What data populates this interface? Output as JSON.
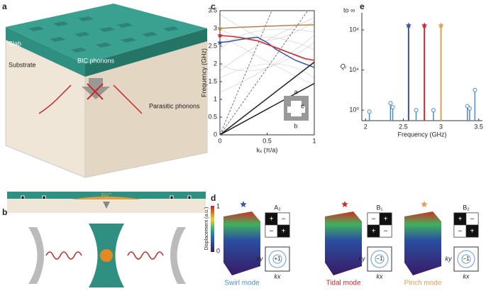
{
  "panels": {
    "a": {
      "letter": "a",
      "slab": "Slab",
      "substrate": "Substrate",
      "bic_phonons": "BIC phonons",
      "parasitic": "Parasitic phonons",
      "bic": "BIC"
    },
    "b": {
      "letter": "b"
    },
    "c": {
      "letter": "c",
      "inset": [
        "a",
        "c",
        "b"
      ]
    },
    "e": {
      "letter": "e"
    },
    "d": {
      "letter": "d",
      "colorbar": {
        "max": "1",
        "min": "0",
        "label": "Displacement (a.u.)"
      },
      "modes": [
        {
          "name": "Swirl mode",
          "symmetry": "A₂",
          "signs": [
            "+",
            "−",
            "−",
            "+"
          ],
          "field": "+1",
          "ky": "ky",
          "kx": "kx"
        },
        {
          "name": "Tidal mode",
          "symmetry": "B₁",
          "signs": [
            "−",
            "+",
            "+",
            "−"
          ],
          "field": "−1",
          "ky": "ky",
          "kx": "kx"
        },
        {
          "name": "Pinch mode",
          "symmetry": "B₂",
          "signs": [
            "+",
            "−",
            "−",
            "+"
          ],
          "field": "−1",
          "ky": "ky",
          "kx": "kx"
        }
      ]
    }
  },
  "chart_data": [
    {
      "type": "line",
      "ylabel": "Frequency (GHz)",
      "xlabel": "kₓ (π/a)",
      "xlim": [
        0,
        1
      ],
      "ylim": [
        0,
        3.5
      ],
      "xticks": [
        0,
        0.5,
        1
      ],
      "yticks": [
        0,
        0.5,
        1,
        1.5,
        2,
        2.5,
        3,
        3.5
      ],
      "series": [
        {
          "color": "#3a55a4",
          "star": true,
          "x": [
            0,
            0.1,
            0.2,
            0.3,
            0.4,
            0.5,
            0.6,
            0.7,
            0.8,
            0.9,
            1
          ],
          "values": [
            2.6,
            2.63,
            2.68,
            2.72,
            2.75,
            2.6,
            2.4,
            2.25,
            2.1,
            2.0,
            1.9
          ]
        },
        {
          "color": "#d0282c",
          "star": true,
          "x": [
            0,
            0.1,
            0.2,
            0.3,
            0.4,
            0.5,
            0.6,
            0.7,
            0.8,
            0.9,
            1
          ],
          "values": [
            2.8,
            2.78,
            2.75,
            2.7,
            2.65,
            2.55,
            2.45,
            2.35,
            2.25,
            2.15,
            2.1
          ]
        },
        {
          "color": "#b8834a",
          "star": true,
          "x": [
            0,
            0.2,
            0.4,
            0.6,
            0.8,
            1
          ],
          "values": [
            3.0,
            3.03,
            3.05,
            3.07,
            3.09,
            3.1
          ]
        },
        {
          "color": "#222222",
          "x": [
            0,
            1
          ],
          "values": [
            0,
            2.05
          ]
        },
        {
          "color": "#222222",
          "x": [
            0,
            1
          ],
          "values": [
            0,
            1.45
          ]
        },
        {
          "color": "#555555",
          "dash": true,
          "x": [
            0,
            0.55
          ],
          "values": [
            0,
            3.5
          ]
        },
        {
          "color": "#555555",
          "dash": true,
          "x": [
            0,
            0.93
          ],
          "values": [
            0,
            3.5
          ]
        }
      ]
    },
    {
      "type": "stem",
      "ylog": true,
      "ylabel": "Qᵣ",
      "xlabel": "Frequency (GHz)",
      "annotation": "to ∞",
      "color": "#4a8cc8",
      "xlim": [
        1.95,
        3.55
      ],
      "ylim": [
        0.09,
        5000000000
      ],
      "xticks": [
        2.0,
        2.5,
        3.0,
        3.5
      ],
      "yticks": [
        {
          "value": 1,
          "label": "10⁰"
        },
        {
          "value": 10000,
          "label": "10⁴"
        },
        {
          "value": 100000000,
          "label": "10⁸"
        }
      ],
      "x": [
        2.05,
        2.33,
        2.36,
        2.67,
        2.9,
        3.35,
        3.38,
        3.45
      ],
      "values": [
        0.7,
        5,
        2,
        1,
        1,
        2.5,
        1.5,
        100
      ],
      "stars": {
        "x": [
          2.57,
          2.78,
          3.0
        ],
        "colors": [
          "#3a55a4",
          "#d0282c",
          "#e0a050"
        ]
      }
    }
  ]
}
